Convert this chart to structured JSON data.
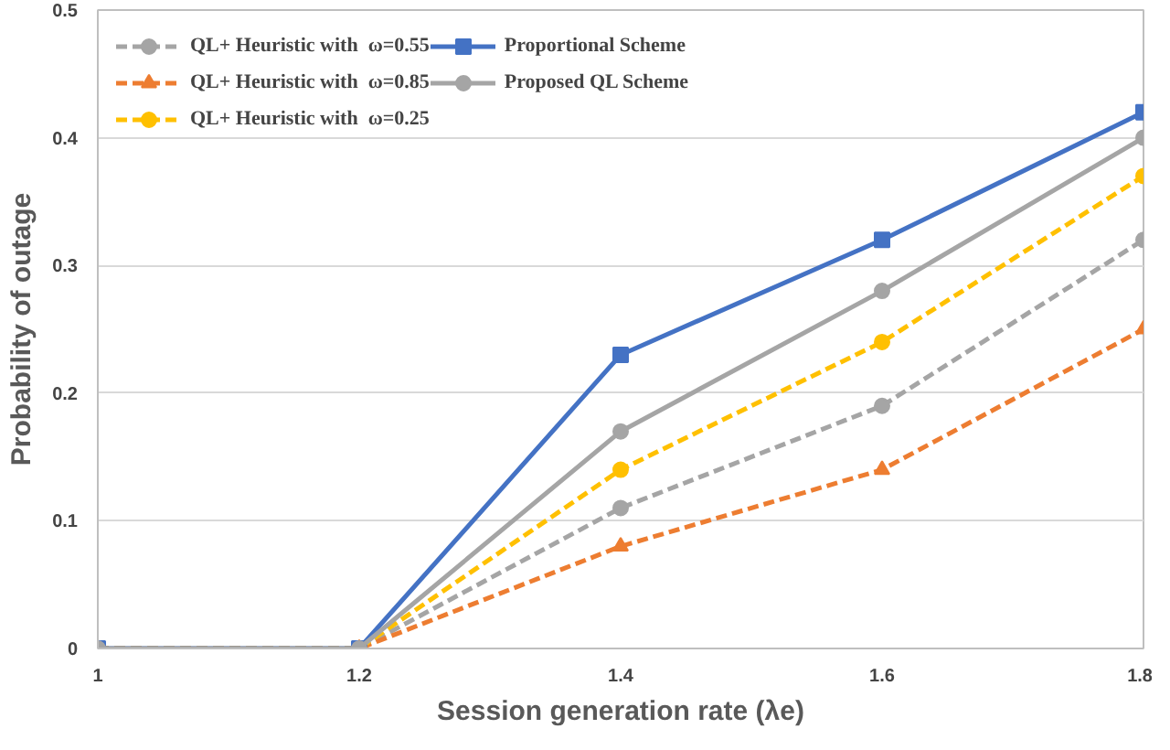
{
  "chart_data": {
    "type": "line",
    "xlabel": "Session generation rate (λe)",
    "ylabel": "Probability of outage",
    "x": [
      1,
      1.2,
      1.4,
      1.6,
      1.8
    ],
    "xlim": [
      1,
      1.8
    ],
    "xticks": [
      1,
      1.2,
      1.4,
      1.6,
      1.8
    ],
    "ylim": [
      0,
      0.5
    ],
    "yticks": [
      0,
      0.1,
      0.2,
      0.3,
      0.4,
      0.5
    ],
    "grid": "y",
    "legend": "top left",
    "series": [
      {
        "name": "QL+ Heuristic with  ω=0.55",
        "color": "#a5a5a5",
        "values": [
          0,
          0,
          0.11,
          0.19,
          0.32
        ],
        "marker": "circle",
        "line_style": "dashed"
      },
      {
        "name": "QL+ Heuristic with  ω=0.85",
        "color": "#ed7d31",
        "values": [
          0,
          0,
          0.08,
          0.14,
          0.25
        ],
        "marker": "triangle",
        "line_style": "dashed"
      },
      {
        "name": "QL+ Heuristic with  ω=0.25",
        "color": "#ffc000",
        "values": [
          0,
          0,
          0.14,
          0.24,
          0.37
        ],
        "marker": "circle",
        "line_style": "dashed"
      },
      {
        "name": "Proportional Scheme",
        "color": "#4472c4",
        "values": [
          0,
          0,
          0.23,
          0.32,
          0.42
        ],
        "marker": "square",
        "line_style": "solid"
      },
      {
        "name": "Proposed QL Scheme",
        "color": "#a5a5a5",
        "values": [
          0,
          0,
          0.17,
          0.28,
          0.4
        ],
        "marker": "circle",
        "line_style": "solid"
      }
    ]
  }
}
